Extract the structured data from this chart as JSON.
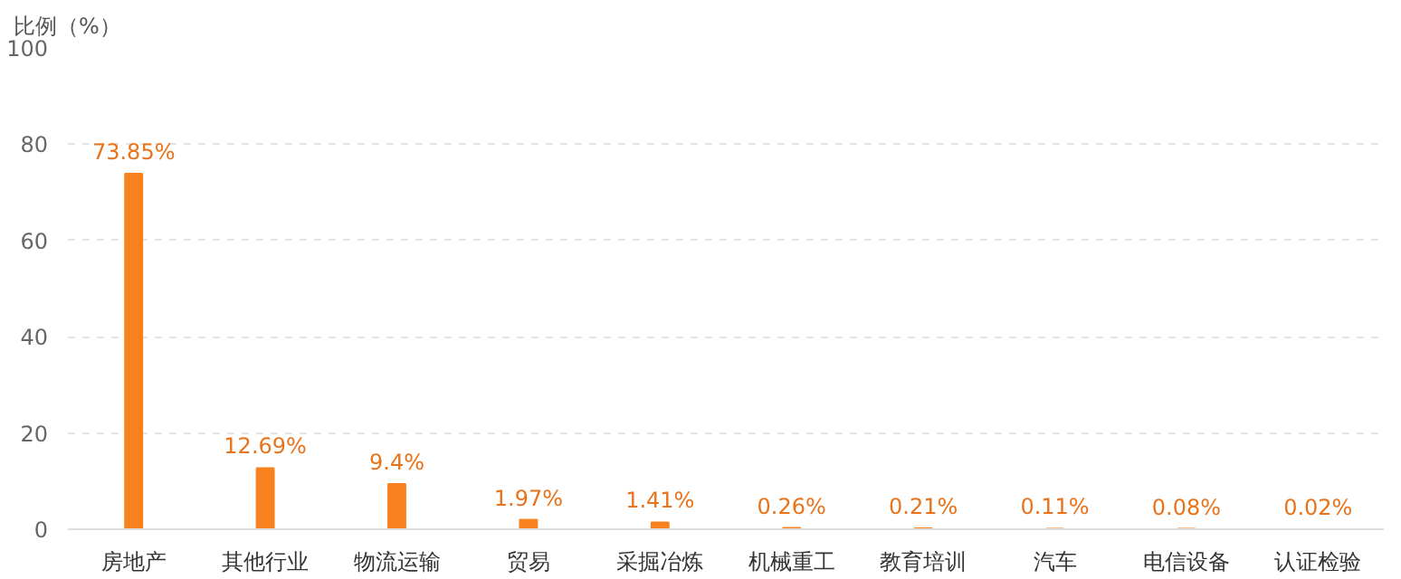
{
  "chart_data": {
    "type": "bar",
    "ylabel": "比例（%）",
    "categories": [
      "房地产",
      "其他行业",
      "物流运输",
      "贸易",
      "采掘冶炼",
      "机械重工",
      "教育培训",
      "汽车",
      "电信设备",
      "认证检验"
    ],
    "values": [
      73.85,
      12.69,
      9.4,
      1.97,
      1.41,
      0.26,
      0.21,
      0.11,
      0.08,
      0.02
    ],
    "value_labels": [
      "73.85%",
      "12.69%",
      "9.4%",
      "1.97%",
      "1.41%",
      "0.26%",
      "0.21%",
      "0.11%",
      "0.08%",
      "0.02%"
    ],
    "color": "#f7821f",
    "ylim": [
      0,
      100
    ],
    "yticks": [
      0,
      20,
      40,
      60,
      80,
      100
    ],
    "grid": "y"
  }
}
